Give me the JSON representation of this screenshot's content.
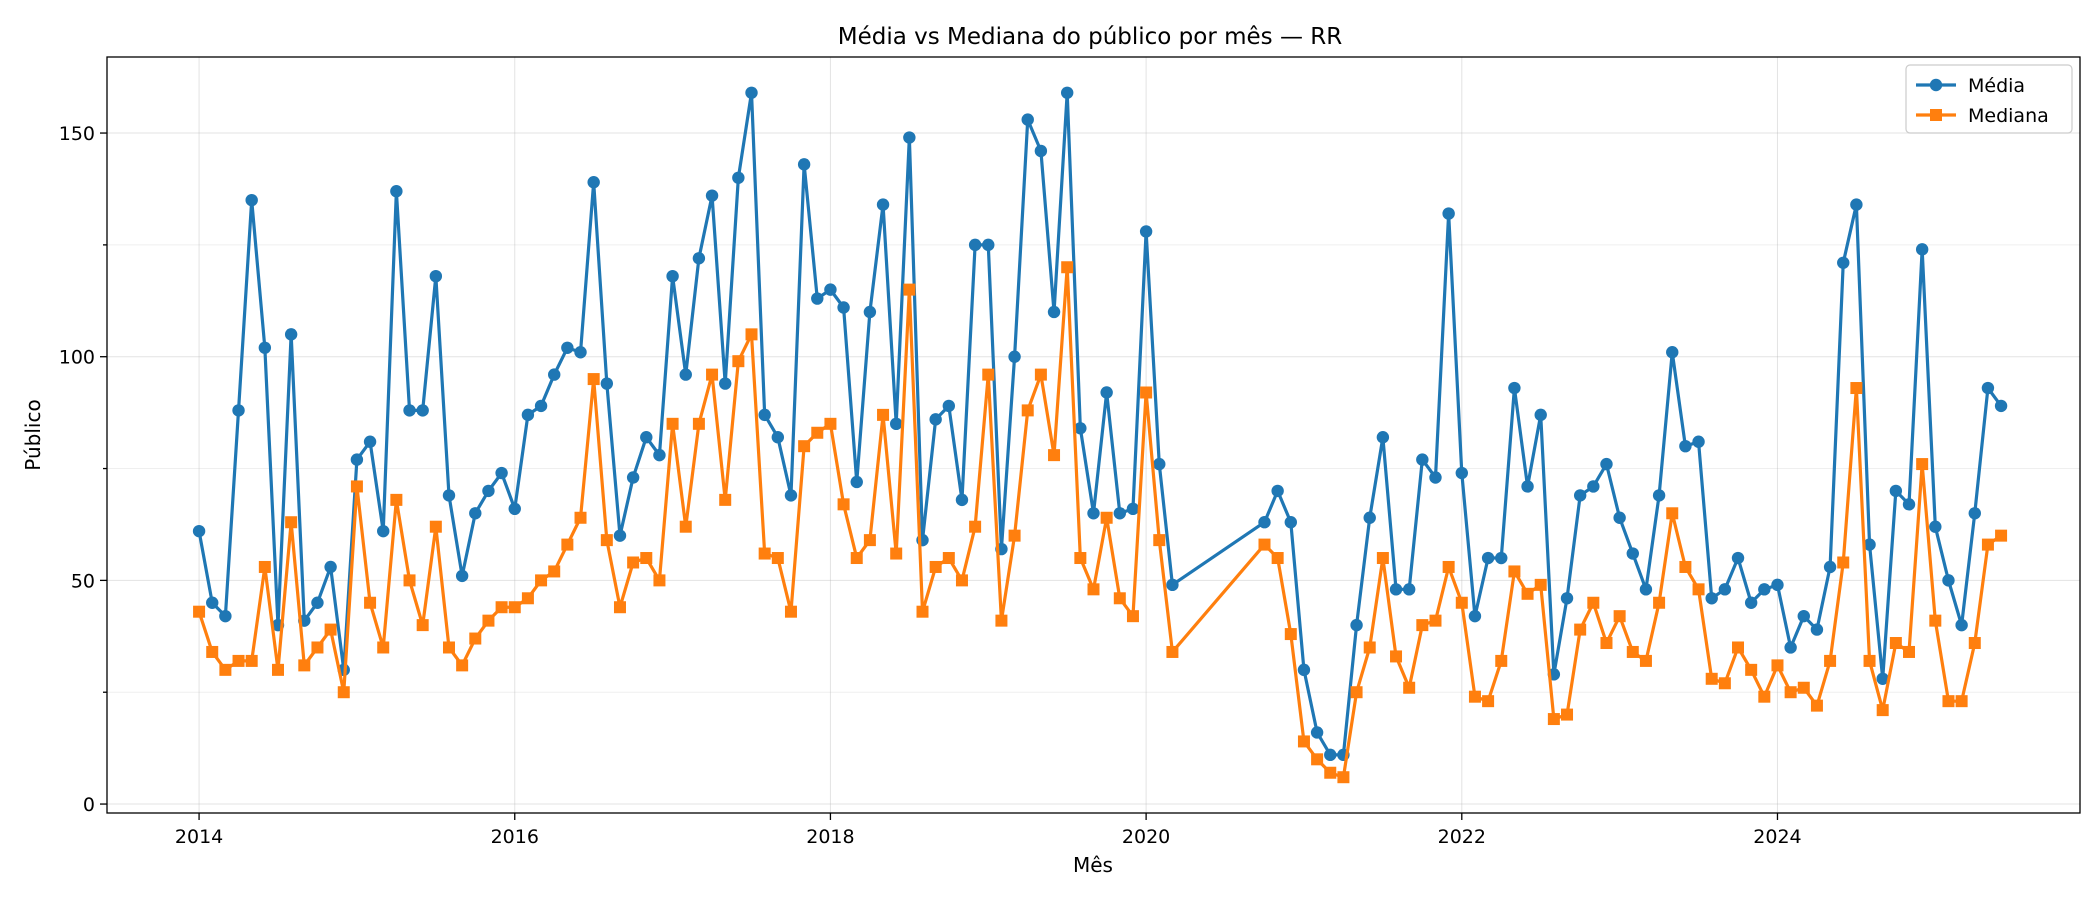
{
  "chart_data": {
    "type": "line",
    "title": "Média vs Mediana do público por mês — RR",
    "xlabel": "Mês",
    "ylabel": "Público",
    "x_ticks": [
      "2014",
      "2016",
      "2018",
      "2020",
      "2022",
      "2024"
    ],
    "y_ticks": [
      "0",
      "50",
      "100",
      "150"
    ],
    "xlim": [
      "2013-06",
      "2025-12"
    ],
    "ylim": [
      -2,
      167
    ],
    "grid": true,
    "legend_position": "top-right",
    "colors": {
      "media": "#1f77b4",
      "mediana": "#ff7f0e"
    },
    "x": [
      "2014-01",
      "2014-02",
      "2014-03",
      "2014-04",
      "2014-05",
      "2014-06",
      "2014-07",
      "2014-08",
      "2014-09",
      "2014-10",
      "2014-11",
      "2014-12",
      "2015-01",
      "2015-02",
      "2015-03",
      "2015-04",
      "2015-05",
      "2015-06",
      "2015-07",
      "2015-08",
      "2015-09",
      "2015-10",
      "2015-11",
      "2015-12",
      "2016-01",
      "2016-02",
      "2016-03",
      "2016-04",
      "2016-05",
      "2016-06",
      "2016-07",
      "2016-08",
      "2016-09",
      "2016-10",
      "2016-11",
      "2016-12",
      "2017-01",
      "2017-02",
      "2017-03",
      "2017-04",
      "2017-05",
      "2017-06",
      "2017-07",
      "2017-08",
      "2017-09",
      "2017-10",
      "2017-11",
      "2017-12",
      "2018-01",
      "2018-02",
      "2018-03",
      "2018-04",
      "2018-05",
      "2018-06",
      "2018-07",
      "2018-08",
      "2018-09",
      "2018-10",
      "2018-11",
      "2018-12",
      "2019-01",
      "2019-02",
      "2019-03",
      "2019-04",
      "2019-05",
      "2019-06",
      "2019-07",
      "2019-08",
      "2019-09",
      "2019-10",
      "2019-11",
      "2019-12",
      "2020-01",
      "2020-02",
      "2020-03",
      "2020-10",
      "2020-11",
      "2020-12",
      "2021-01",
      "2021-02",
      "2021-03",
      "2021-04",
      "2021-05",
      "2021-06",
      "2021-07",
      "2021-08",
      "2021-09",
      "2021-10",
      "2021-11",
      "2021-12",
      "2022-01",
      "2022-02",
      "2022-03",
      "2022-04",
      "2022-05",
      "2022-06",
      "2022-07",
      "2022-08",
      "2022-09",
      "2022-10",
      "2022-11",
      "2022-12",
      "2023-01",
      "2023-02",
      "2023-03",
      "2023-04",
      "2023-05",
      "2023-06",
      "2023-07",
      "2023-08",
      "2023-09",
      "2023-10",
      "2023-11",
      "2023-12",
      "2024-01",
      "2024-02",
      "2024-03",
      "2024-04",
      "2024-05",
      "2024-06",
      "2024-07",
      "2024-08",
      "2024-09",
      "2024-10",
      "2024-11",
      "2024-12",
      "2025-01",
      "2025-02",
      "2025-03",
      "2025-04",
      "2025-05",
      "2025-06"
    ],
    "series": [
      {
        "name": "Média",
        "color": "#1f77b4",
        "marker": "circle",
        "values": [
          61,
          45,
          42,
          88,
          135,
          102,
          40,
          105,
          41,
          45,
          53,
          30,
          77,
          81,
          61,
          137,
          88,
          88,
          118,
          69,
          51,
          65,
          70,
          74,
          66,
          87,
          89,
          96,
          102,
          101,
          139,
          94,
          60,
          73,
          82,
          78,
          118,
          96,
          122,
          136,
          94,
          140,
          159,
          87,
          82,
          69,
          143,
          113,
          115,
          111,
          72,
          110,
          134,
          85,
          149,
          59,
          86,
          89,
          68,
          125,
          125,
          57,
          100,
          153,
          146,
          110,
          159,
          84,
          65,
          92,
          65,
          66,
          128,
          76,
          49,
          63,
          70,
          63,
          30,
          16,
          11,
          11,
          40,
          64,
          82,
          48,
          48,
          77,
          73,
          132,
          74,
          42,
          55,
          55,
          93,
          71,
          87,
          29,
          46,
          69,
          71,
          76,
          64,
          56,
          48,
          69,
          101,
          80,
          81,
          46,
          48,
          55,
          45,
          48,
          49,
          35,
          42,
          39,
          53,
          121,
          134,
          58,
          28,
          70,
          67,
          124,
          62,
          50,
          40,
          65,
          93,
          89
        ]
      },
      {
        "name": "Mediana",
        "color": "#ff7f0e",
        "marker": "square",
        "values": [
          43,
          34,
          30,
          32,
          32,
          53,
          30,
          63,
          31,
          35,
          39,
          25,
          71,
          45,
          35,
          68,
          50,
          40,
          62,
          35,
          31,
          37,
          41,
          44,
          44,
          46,
          50,
          52,
          58,
          64,
          95,
          59,
          44,
          54,
          55,
          50,
          85,
          62,
          85,
          96,
          68,
          99,
          105,
          56,
          55,
          43,
          80,
          83,
          85,
          67,
          55,
          59,
          87,
          56,
          115,
          43,
          53,
          55,
          50,
          62,
          96,
          41,
          60,
          88,
          96,
          78,
          120,
          55,
          48,
          64,
          46,
          42,
          92,
          59,
          34,
          58,
          55,
          38,
          14,
          10,
          7,
          6,
          25,
          35,
          55,
          33,
          26,
          40,
          41,
          53,
          45,
          24,
          23,
          32,
          52,
          47,
          49,
          19,
          20,
          39,
          45,
          36,
          42,
          34,
          32,
          45,
          65,
          53,
          48,
          28,
          27,
          35,
          30,
          24,
          31,
          25,
          26,
          22,
          32,
          54,
          93,
          32,
          21,
          36,
          34,
          76,
          41,
          23,
          23,
          36,
          58,
          60
        ]
      }
    ]
  }
}
